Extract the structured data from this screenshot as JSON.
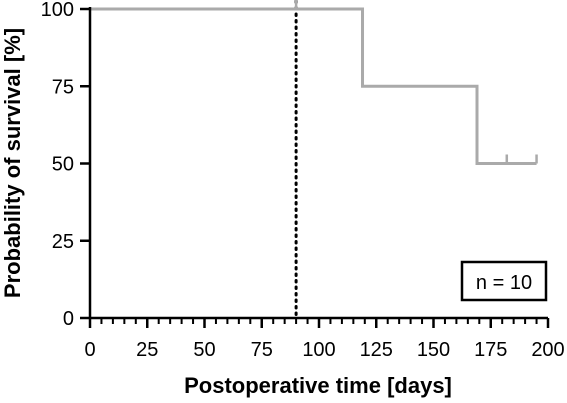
{
  "chart_data": {
    "type": "line",
    "subtype": "kaplan-meier-step",
    "title": "",
    "xlabel": "Postoperative time [days]",
    "ylabel": "Probability of survival [%]",
    "xlim": [
      0,
      200
    ],
    "ylim": [
      0,
      100
    ],
    "x_ticks": [
      0,
      25,
      50,
      75,
      100,
      125,
      150,
      175,
      200
    ],
    "y_ticks": [
      0,
      25,
      50,
      75,
      100
    ],
    "x_minor_step": 5,
    "grid": false,
    "series": [
      {
        "color": "#aaaaaa",
        "steps": [
          {
            "x": 0,
            "y": 100
          },
          {
            "x": 119,
            "y": 100
          },
          {
            "x": 119,
            "y": 75
          },
          {
            "x": 169,
            "y": 75
          },
          {
            "x": 169,
            "y": 50
          },
          {
            "x": 195,
            "y": 50
          }
        ],
        "censored": [
          {
            "x": 90,
            "y": 100
          },
          {
            "x": 182,
            "y": 50
          },
          {
            "x": 195,
            "y": 50
          }
        ]
      }
    ],
    "reference_line": {
      "x": 90,
      "style": "dotted"
    },
    "annotation": {
      "text": "n = 10",
      "placement": "bottom-right"
    }
  }
}
